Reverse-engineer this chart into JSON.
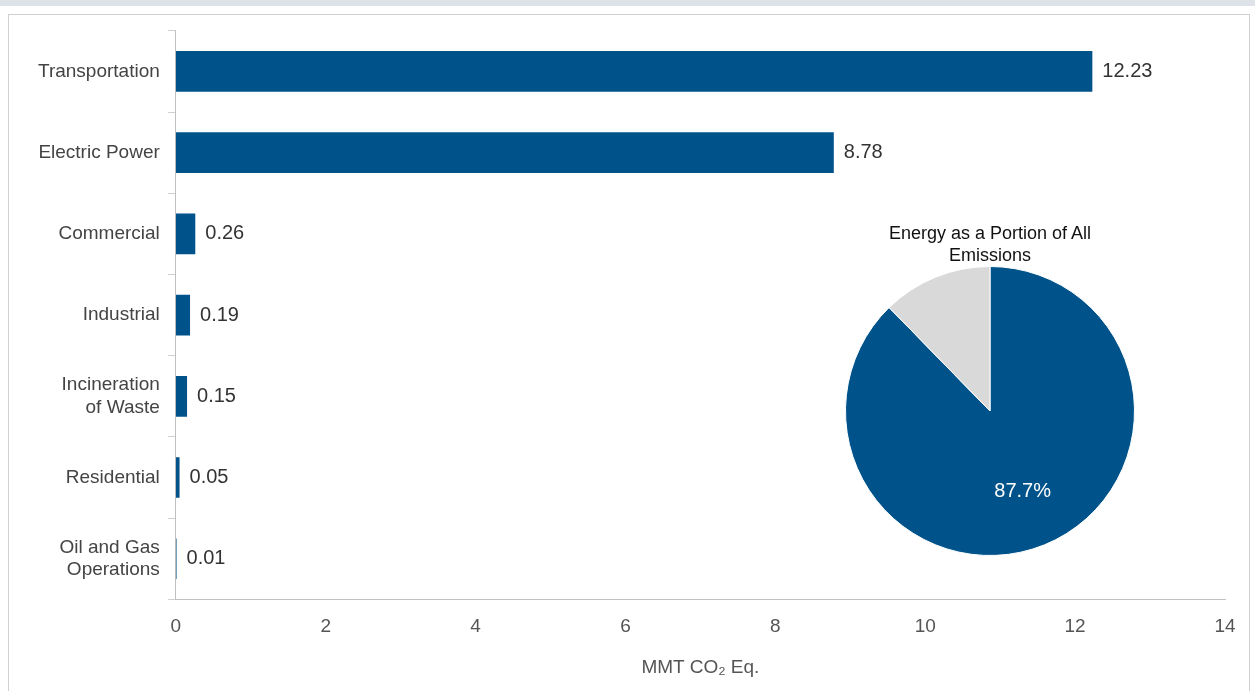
{
  "chart_data": [
    {
      "type": "bar",
      "orientation": "horizontal",
      "categories": [
        "Transportation",
        "Electric Power",
        "Commercial",
        "Industrial",
        "Incineration of Waste",
        "Residential",
        "Oil and Gas Operations"
      ],
      "values": [
        12.23,
        8.78,
        0.26,
        0.19,
        0.15,
        0.05,
        0.01
      ],
      "color": "#00538a",
      "data_labels": true,
      "xlim": [
        0,
        14
      ],
      "xticks": [
        0,
        2,
        4,
        6,
        8,
        10,
        12,
        14
      ],
      "xlabel": "MMT CO₂ Eq.",
      "grid": false,
      "legend": false
    },
    {
      "type": "pie",
      "title": "Energy as a Portion of All Emissions",
      "categories": [
        null,
        null
      ],
      "values": [
        87.7,
        12.3
      ],
      "colors": [
        "#00538a",
        "#d9d9d9"
      ],
      "value_labels": [
        "87.7%",
        null
      ],
      "legend": false
    }
  ]
}
